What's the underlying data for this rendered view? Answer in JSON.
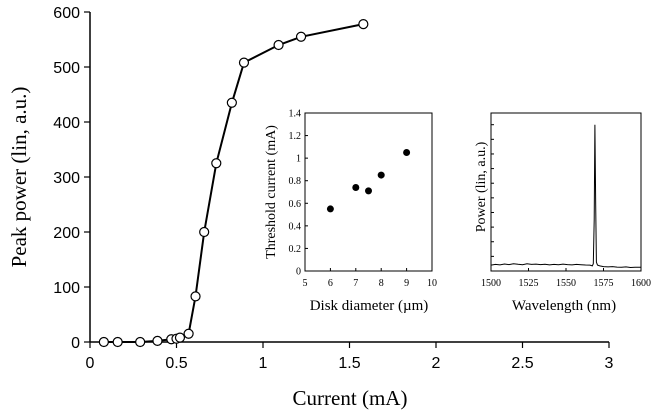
{
  "chart_data": [
    {
      "id": "main",
      "type": "line",
      "xlabel": "Current (mA)",
      "ylabel": "Peak power (lin, a.u.)",
      "xlim": [
        0,
        3
      ],
      "ylim": [
        0,
        600
      ],
      "xticks": [
        0,
        0.5,
        1,
        1.5,
        2,
        2.5,
        3
      ],
      "xtick_labels": [
        "0",
        "0.5",
        "1",
        "1.5",
        "2",
        "2.5",
        "3"
      ],
      "yticks": [
        0,
        100,
        200,
        300,
        400,
        500,
        600
      ],
      "ytick_labels": [
        "0",
        "100",
        "200",
        "300",
        "400",
        "500",
        "600"
      ],
      "grid": false,
      "marker": "open-circle",
      "series": [
        {
          "x": [
            0.08,
            0.16,
            0.29,
            0.39,
            0.47,
            0.5,
            0.52,
            0.57,
            0.61,
            0.66,
            0.73,
            0.82,
            0.89,
            1.09,
            1.22,
            1.58
          ],
          "y": [
            0,
            0,
            0,
            2,
            5,
            6,
            8,
            15,
            83,
            200,
            325,
            435,
            508,
            540,
            555,
            578
          ]
        }
      ]
    },
    {
      "id": "inset-threshold",
      "type": "scatter",
      "xlabel": "Disk diameter (µm)",
      "ylabel": "Threshold current (mA)",
      "xlim": [
        5,
        10
      ],
      "ylim": [
        0,
        1.4
      ],
      "xticks": [
        5,
        6,
        7,
        8,
        9,
        10
      ],
      "xtick_labels": [
        "5",
        "6",
        "7",
        "8",
        "9",
        "10"
      ],
      "yticks": [
        0,
        0.2,
        0.4,
        0.6,
        0.8,
        1,
        1.2,
        1.4
      ],
      "ytick_labels": [
        "0",
        "0.2",
        "0.4",
        "0.6",
        "0.8",
        "1",
        "1.2",
        "1.4"
      ],
      "grid": false,
      "marker": "filled-circle",
      "series": [
        {
          "x": [
            6,
            7,
            7.5,
            8,
            9
          ],
          "y": [
            0.55,
            0.74,
            0.71,
            0.85,
            1.05
          ]
        }
      ]
    },
    {
      "id": "inset-spectrum",
      "type": "line",
      "xlabel": "Wavelength (nm)",
      "ylabel": "Power (lin, a.u.)",
      "xlim": [
        1500,
        1600
      ],
      "xticks": [
        1500,
        1525,
        1550,
        1575,
        1600
      ],
      "xtick_labels": [
        "1500",
        "1525",
        "1550",
        "1575",
        "1600"
      ],
      "y_scale": "linear, unlabeled",
      "grid": false,
      "series": [
        {
          "x": [
            1500,
            1503,
            1506,
            1509,
            1512,
            1515,
            1518,
            1521,
            1524,
            1527,
            1530,
            1533,
            1536,
            1539,
            1542,
            1545,
            1548,
            1551,
            1554,
            1557,
            1560,
            1563,
            1566,
            1567.5,
            1568.2,
            1568.8,
            1569.3,
            1569.8,
            1570.3,
            1571,
            1572.5,
            1575,
            1578,
            1581,
            1584,
            1587,
            1590,
            1593,
            1596,
            1600
          ],
          "y": [
            0.04,
            0.045,
            0.042,
            0.048,
            0.044,
            0.05,
            0.046,
            0.043,
            0.049,
            0.045,
            0.047,
            0.044,
            0.046,
            0.042,
            0.045,
            0.043,
            0.047,
            0.044,
            0.042,
            0.045,
            0.043,
            0.041,
            0.04,
            0.035,
            0.05,
            0.35,
            1.0,
            0.45,
            0.06,
            0.04,
            0.035,
            0.03,
            0.028,
            0.03,
            0.027,
            0.025,
            0.028,
            0.024,
            0.026,
            0.025
          ]
        }
      ]
    }
  ]
}
